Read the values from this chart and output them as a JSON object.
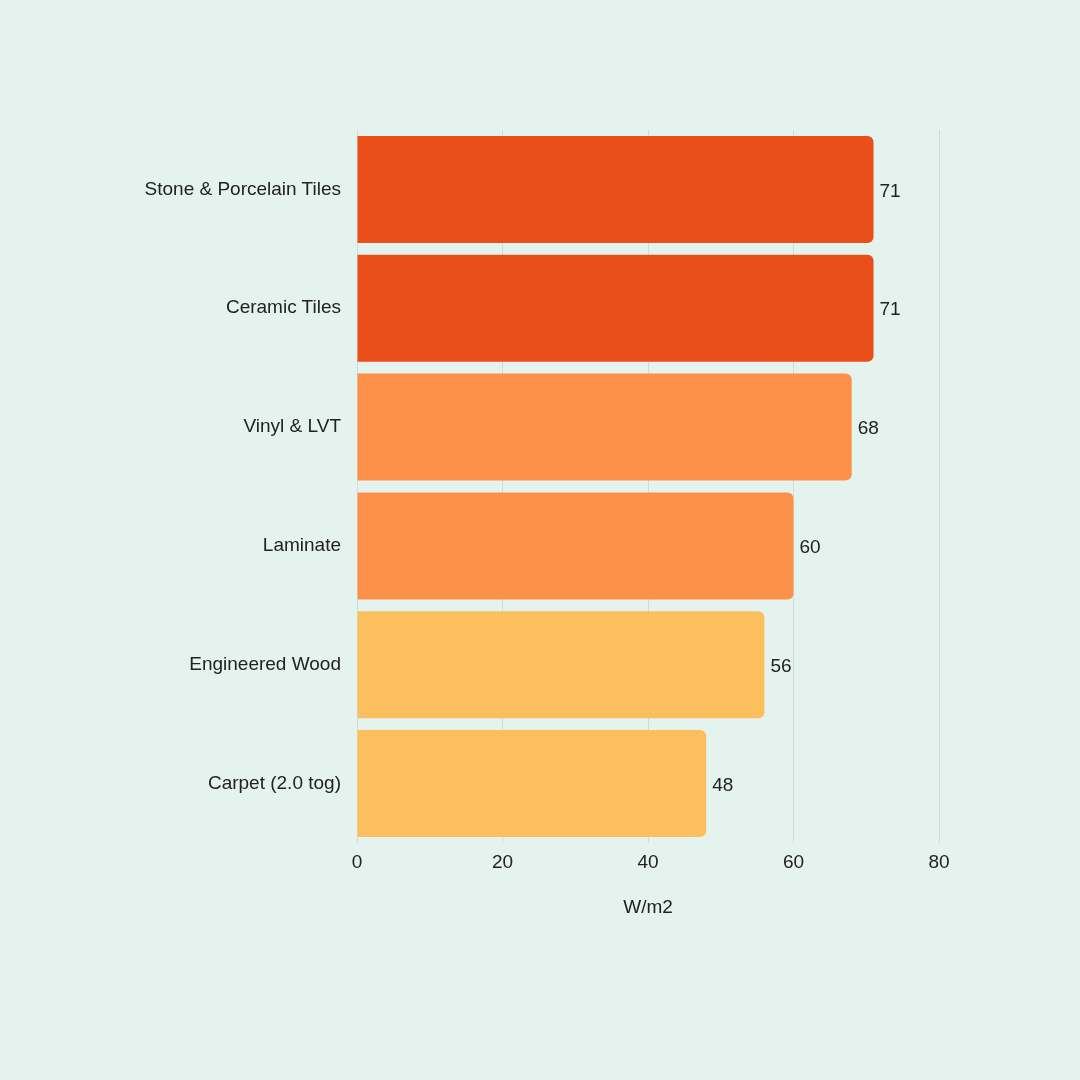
{
  "chart_data": {
    "type": "bar",
    "orientation": "horizontal",
    "xlabel": "W/m2",
    "categories": [
      "Stone & Porcelain Tiles",
      "Ceramic Tiles",
      "Vinyl & LVT",
      "Laminate",
      "Engineered Wood",
      "Carpet (2.0 tog)"
    ],
    "values": [
      71,
      71,
      68,
      60,
      56,
      48
    ],
    "colors": [
      "#e94e1b",
      "#e94e1b",
      "#fe914a",
      "#fe914a",
      "#fdbf5e",
      "#fdbf5e"
    ],
    "xlim": [
      0,
      80
    ],
    "xticks": [
      0,
      20,
      40,
      60,
      80
    ],
    "grid": "x",
    "legend": false,
    "data_labels": true
  }
}
